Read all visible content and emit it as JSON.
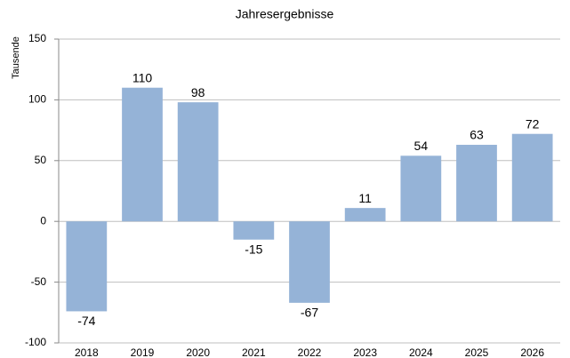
{
  "chart_data": {
    "type": "bar",
    "title": "Jahresergebnisse",
    "y_label": "Tausende",
    "categories": [
      "2018",
      "2019",
      "2020",
      "2021",
      "2022",
      "2023",
      "2024",
      "2025",
      "2026"
    ],
    "values": [
      -74,
      110,
      98,
      -15,
      -67,
      11,
      54,
      63,
      72
    ],
    "color": "#95b3d7",
    "ylim": [
      -100,
      150
    ],
    "yticks": [
      -100,
      -50,
      0,
      50,
      100,
      150
    ],
    "grid": true
  }
}
